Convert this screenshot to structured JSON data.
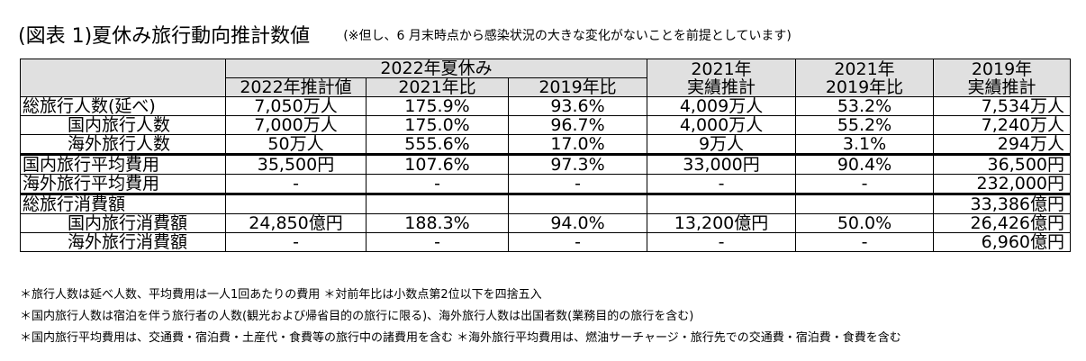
{
  "title": "(図表 1)夏休み旅行動向推計数値",
  "subtitle_note": "(※但し、6 月末時点から感染状況の大きな変化がないことを前提としています)",
  "header": {
    "group_2022": "2022年夏休み",
    "col_2022_est": "2022年推計値",
    "col_2021_ratio": "2021年比",
    "col_2019_ratio": "2019年比",
    "col_2021_actual_l1": "2021年",
    "col_2021_actual_l2": "実績推計",
    "col_2021_vs2019_l1": "2021年",
    "col_2021_vs2019_l2": "2019年比",
    "col_2019_actual_l1": "2019年",
    "col_2019_actual_l2": "実績推計"
  },
  "rows": [
    {
      "label": "総旅行人数(延べ)",
      "v": [
        "7,050万人",
        "175.9%",
        "93.6%",
        "4,009万人",
        "53.2%",
        "7,534万人"
      ]
    },
    {
      "label": "国内旅行人数",
      "v": [
        "7,000万人",
        "175.0%",
        "96.7%",
        "4,000万人",
        "55.2%",
        "7,240万人"
      ]
    },
    {
      "label": "海外旅行人数",
      "v": [
        "50万人",
        "555.6%",
        "17.0%",
        "9万人",
        "3.1%",
        "294万人"
      ]
    },
    {
      "label": "国内旅行平均費用",
      "v": [
        "35,500円",
        "107.6%",
        "97.3%",
        "33,000円",
        "90.4%",
        "36,500円"
      ]
    },
    {
      "label": "海外旅行平均費用",
      "v": [
        "-",
        "-",
        "-",
        "-",
        "-",
        "232,000円"
      ]
    },
    {
      "label": "総旅行消費額",
      "v": [
        "",
        "",
        "",
        "",
        "",
        "33,386億円"
      ]
    },
    {
      "label": "国内旅行消費額",
      "v": [
        "24,850億円",
        "188.3%",
        "94.0%",
        "13,200億円",
        "50.0%",
        "26,426億円"
      ]
    },
    {
      "label": "海外旅行消費額",
      "v": [
        "-",
        "-",
        "-",
        "-",
        "-",
        "6,960億円"
      ]
    }
  ],
  "footnotes": [
    "＊旅行人数は延べ人数、平均費用は一人1回あたりの費用 ＊対前年比は小数点第2位以下を四捨五入",
    "＊国内旅行人数は宿泊を伴う旅行者の人数(観光および帰省目的の旅行に限る)、海外旅行人数は出国者数(業務目的の旅行を含む)",
    "＊国内旅行平均費用は、交通費・宿泊費・土産代・食費等の旅行中の諸費用を含む ＊海外旅行平均費用は、燃油サーチャージ・旅行先での交通費・宿泊費・食費を含む"
  ]
}
